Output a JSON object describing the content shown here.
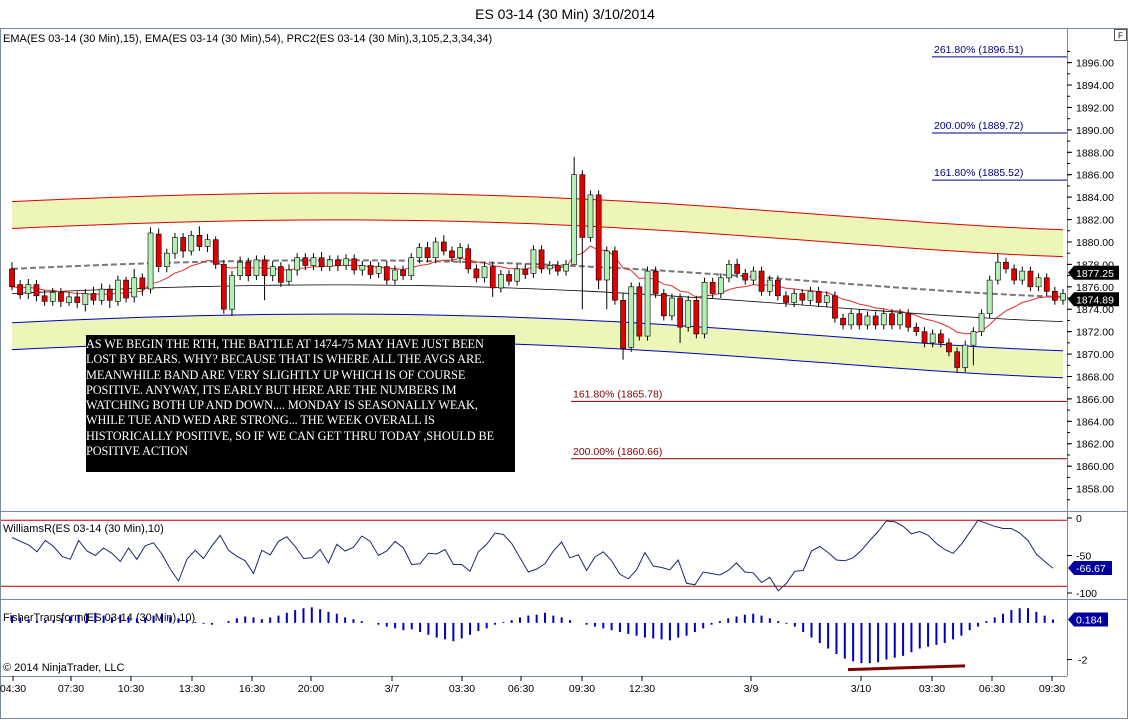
{
  "title": "ES 03-14 (30 Min)  3/10/2014",
  "indicator_label": "EMA(ES 03-14 (30 Min),15), EMA(ES 03-14 (30 Min),54), PRC2(ES 03-14 (30 Min),3,105,2,3,34,34)",
  "corner_label": "F",
  "williams_label": "WilliamsR(ES 03-14 (30 Min),10)",
  "fisher_label": "FisherTransform(ES 03-14 (30 Min),10)",
  "copyright": "© 2014 NinjaTrader, LLC",
  "annotation": "AS WE BEGIN THE RTH, THE BATTLE AT 1474-75 MAY HAVE JUST BEEN LOST BY BEARS. WHY? BECAUSE THAT IS WHERE ALL THE AVGS ARE. MEANWHILE BAND ARE VERY SLIGHTLY UP WHICH IS OF COURSE POSITIVE. ANYWAY, ITS EARLY BUT HERE ARE THE NUMBERS IM WATCHING BOTH UP AND DOWN.... MONDAY IS SEASONALLY WEAK, WHILE TUE AND WED ARE STRONG... THE WEEK OVERALL IS HISTORICALLY POSITIVE, SO IF WE CAN GET THRU TODAY ,SHOULD BE POSITIVE ACTION",
  "colors": {
    "up": "#b4f0b4",
    "down": "#e00000",
    "fib_blue": "#000080",
    "fib_red": "#800000",
    "band_fill": "#eef5b8",
    "band_red": "#e00000",
    "band_blue": "#0000c0",
    "marker_blue": "#0000c0"
  },
  "chart_data": [
    {
      "type": "candlestick",
      "title": "ES 03-14 (30 Min)  3/10/2014",
      "y_ticks": [
        "1858.00",
        "1860.00",
        "1862.00",
        "1864.00",
        "1866.00",
        "1868.00",
        "1870.00",
        "1872.00",
        "1874.00",
        "1876.00",
        "1878.00",
        "1880.00",
        "1882.00",
        "1884.00",
        "1886.00",
        "1888.00",
        "1890.00",
        "1892.00",
        "1894.00",
        "1896.00"
      ],
      "ylim": [
        1856,
        1899
      ],
      "x_ticks": [
        "04:30",
        "07:30",
        "10:30",
        "13:30",
        "16:30",
        "20:00",
        "3/7",
        "03:30",
        "06:30",
        "09:30",
        "12:30",
        "3/9",
        "3/10",
        "03:30",
        "06:30",
        "09:30"
      ],
      "price_markers": [
        "1877.25",
        "1874.89"
      ],
      "fib_levels": [
        {
          "label": "261.80% (1896.51)",
          "value": 1896.51,
          "color": "blue"
        },
        {
          "label": "200.00% (1889.72)",
          "value": 1889.72,
          "color": "blue"
        },
        {
          "label": "161.80% (1885.52)",
          "value": 1885.52,
          "color": "blue"
        },
        {
          "label": "161.80% (1865.78)",
          "value": 1865.78,
          "color": "red"
        },
        {
          "label": "200.00% (1860.66)",
          "value": 1860.66,
          "color": "red"
        }
      ],
      "candles": [
        [
          1877.6,
          1876.0,
          1878.2,
          1875.7
        ],
        [
          1876.2,
          1875.3,
          1876.6,
          1874.9
        ],
        [
          1875.4,
          1876.2,
          1876.7,
          1874.9
        ],
        [
          1876.2,
          1875.2,
          1876.6,
          1874.7
        ],
        [
          1875.2,
          1874.7,
          1875.7,
          1874.3
        ],
        [
          1874.7,
          1875.5,
          1875.9,
          1874.3
        ],
        [
          1875.5,
          1874.7,
          1875.9,
          1874.2
        ],
        [
          1874.6,
          1875.1,
          1875.5,
          1874.3
        ],
        [
          1875.1,
          1874.6,
          1875.6,
          1874.1
        ],
        [
          1874.4,
          1875.4,
          1875.8,
          1873.8
        ],
        [
          1875.4,
          1874.8,
          1876.0,
          1874.4
        ],
        [
          1874.8,
          1875.8,
          1876.3,
          1874.4
        ],
        [
          1875.8,
          1874.8,
          1876.2,
          1874.1
        ],
        [
          1874.7,
          1876.6,
          1877.0,
          1874.3
        ],
        [
          1876.6,
          1875.0,
          1876.9,
          1874.6
        ],
        [
          1875.1,
          1876.8,
          1877.6,
          1874.6
        ],
        [
          1876.8,
          1875.8,
          1877.2,
          1875.2
        ],
        [
          1875.8,
          1880.8,
          1881.3,
          1875.4
        ],
        [
          1880.7,
          1877.8,
          1881.2,
          1877.3
        ],
        [
          1877.8,
          1879.0,
          1879.4,
          1877.3
        ],
        [
          1879.0,
          1880.4,
          1880.8,
          1878.5
        ],
        [
          1880.4,
          1879.2,
          1880.8,
          1878.6
        ],
        [
          1879.2,
          1880.6,
          1881.0,
          1878.8
        ],
        [
          1880.6,
          1879.6,
          1881.4,
          1879.2
        ],
        [
          1879.6,
          1880.2,
          1880.7,
          1879.1
        ],
        [
          1880.2,
          1878.0,
          1880.5,
          1877.6
        ],
        [
          1878.0,
          1874.0,
          1878.4,
          1873.6
        ],
        [
          1874.0,
          1877.0,
          1877.4,
          1873.4
        ],
        [
          1877.0,
          1878.2,
          1878.7,
          1876.6
        ],
        [
          1878.2,
          1877.0,
          1878.6,
          1876.5
        ],
        [
          1877.0,
          1878.4,
          1878.8,
          1876.6
        ],
        [
          1878.4,
          1877.0,
          1878.8,
          1874.8
        ],
        [
          1877.0,
          1877.8,
          1878.3,
          1876.5
        ],
        [
          1877.8,
          1876.4,
          1878.2,
          1876.0
        ],
        [
          1876.5,
          1877.5,
          1878.0,
          1876.1
        ],
        [
          1877.5,
          1878.6,
          1879.0,
          1877.0
        ],
        [
          1878.6,
          1877.9,
          1879.0,
          1877.5
        ],
        [
          1877.9,
          1878.6,
          1879.0,
          1877.5
        ],
        [
          1878.6,
          1877.8,
          1879.1,
          1877.4
        ],
        [
          1877.8,
          1878.4,
          1878.8,
          1877.4
        ],
        [
          1878.4,
          1877.9,
          1878.8,
          1877.4
        ],
        [
          1877.9,
          1878.5,
          1878.9,
          1877.5
        ],
        [
          1878.5,
          1877.5,
          1878.9,
          1877.1
        ],
        [
          1877.5,
          1877.9,
          1878.3,
          1877.0
        ],
        [
          1877.9,
          1877.1,
          1878.3,
          1876.7
        ],
        [
          1877.2,
          1877.8,
          1878.2,
          1876.8
        ],
        [
          1877.8,
          1876.6,
          1878.3,
          1876.2
        ],
        [
          1876.6,
          1877.5,
          1877.9,
          1876.2
        ],
        [
          1877.5,
          1877.0,
          1877.9,
          1876.6
        ],
        [
          1877.0,
          1878.6,
          1879.0,
          1876.6
        ],
        [
          1878.6,
          1879.5,
          1879.9,
          1878.1
        ],
        [
          1879.5,
          1878.6,
          1880.0,
          1878.2
        ],
        [
          1878.6,
          1880.0,
          1880.4,
          1878.1
        ],
        [
          1880.0,
          1879.2,
          1880.6,
          1878.8
        ],
        [
          1879.2,
          1878.6,
          1879.6,
          1878.2
        ],
        [
          1878.6,
          1879.5,
          1879.9,
          1878.1
        ],
        [
          1879.4,
          1877.6,
          1879.8,
          1877.2
        ],
        [
          1877.6,
          1876.8,
          1878.0,
          1876.4
        ],
        [
          1876.8,
          1877.8,
          1878.2,
          1876.4
        ],
        [
          1877.8,
          1875.9,
          1878.2,
          1875.1
        ],
        [
          1875.9,
          1877.1,
          1877.5,
          1875.5
        ],
        [
          1877.1,
          1876.5,
          1877.5,
          1876.1
        ],
        [
          1876.5,
          1877.6,
          1878.0,
          1876.1
        ],
        [
          1877.6,
          1877.1,
          1878.0,
          1876.7
        ],
        [
          1877.2,
          1879.3,
          1879.7,
          1876.8
        ],
        [
          1879.3,
          1877.6,
          1879.7,
          1877.2
        ],
        [
          1877.6,
          1877.9,
          1878.3,
          1877.1
        ],
        [
          1877.9,
          1877.4,
          1878.3,
          1877.0
        ],
        [
          1877.4,
          1878.0,
          1878.4,
          1877.0
        ],
        [
          1878.0,
          1886.0,
          1887.6,
          1878.0
        ],
        [
          1886.0,
          1880.4,
          1886.4,
          1874.0
        ],
        [
          1880.4,
          1884.2,
          1884.6,
          1880.0
        ],
        [
          1884.2,
          1876.6,
          1884.6,
          1875.8
        ],
        [
          1876.6,
          1879.2,
          1879.6,
          1874.0
        ],
        [
          1879.2,
          1874.8,
          1879.6,
          1874.4
        ],
        [
          1874.8,
          1870.5,
          1875.4,
          1869.5
        ],
        [
          1870.6,
          1876.0,
          1876.4,
          1870.2
        ],
        [
          1876.0,
          1871.6,
          1876.4,
          1871.2
        ],
        [
          1871.6,
          1877.4,
          1877.8,
          1871.2
        ],
        [
          1877.4,
          1875.4,
          1877.8,
          1875.0
        ],
        [
          1875.4,
          1873.4,
          1875.8,
          1873.0
        ],
        [
          1873.4,
          1875.0,
          1875.4,
          1873.0
        ],
        [
          1875.0,
          1872.4,
          1875.4,
          1871.0
        ],
        [
          1872.4,
          1874.8,
          1875.2,
          1872.0
        ],
        [
          1874.8,
          1871.8,
          1875.2,
          1871.4
        ],
        [
          1871.8,
          1876.4,
          1876.8,
          1871.4
        ],
        [
          1876.4,
          1875.4,
          1876.8,
          1875.0
        ],
        [
          1875.4,
          1876.8,
          1877.2,
          1875.0
        ],
        [
          1876.8,
          1878.0,
          1878.4,
          1876.4
        ],
        [
          1878.0,
          1877.2,
          1878.5,
          1876.8
        ],
        [
          1877.2,
          1876.6,
          1877.6,
          1876.2
        ],
        [
          1876.6,
          1877.4,
          1877.8,
          1876.2
        ],
        [
          1877.4,
          1875.6,
          1877.8,
          1875.2
        ],
        [
          1875.6,
          1876.6,
          1877.0,
          1875.2
        ],
        [
          1876.6,
          1875.2,
          1877.0,
          1874.8
        ],
        [
          1875.2,
          1874.6,
          1875.6,
          1874.2
        ],
        [
          1874.6,
          1875.4,
          1875.8,
          1874.2
        ],
        [
          1875.4,
          1874.8,
          1875.8,
          1874.4
        ],
        [
          1874.8,
          1875.6,
          1876.0,
          1874.4
        ],
        [
          1875.6,
          1874.6,
          1876.0,
          1874.2
        ],
        [
          1874.6,
          1875.2,
          1875.6,
          1874.2
        ],
        [
          1875.2,
          1873.2,
          1875.6,
          1872.8
        ],
        [
          1873.2,
          1872.6,
          1873.6,
          1872.2
        ],
        [
          1872.6,
          1873.6,
          1874.0,
          1872.2
        ],
        [
          1873.6,
          1872.6,
          1874.0,
          1872.2
        ],
        [
          1872.6,
          1873.4,
          1873.8,
          1872.2
        ],
        [
          1873.4,
          1872.6,
          1873.8,
          1872.2
        ],
        [
          1872.6,
          1873.6,
          1874.0,
          1872.2
        ],
        [
          1873.6,
          1872.6,
          1874.0,
          1872.2
        ],
        [
          1872.6,
          1873.6,
          1874.0,
          1872.2
        ],
        [
          1873.6,
          1872.4,
          1874.0,
          1872.0
        ],
        [
          1872.4,
          1872.0,
          1872.8,
          1871.6
        ],
        [
          1872.0,
          1871.0,
          1872.4,
          1870.6
        ],
        [
          1871.0,
          1871.8,
          1872.2,
          1870.6
        ],
        [
          1871.8,
          1871.0,
          1872.2,
          1870.6
        ],
        [
          1871.0,
          1870.2,
          1871.4,
          1869.8
        ],
        [
          1870.2,
          1868.8,
          1870.6,
          1868.4
        ],
        [
          1868.8,
          1870.8,
          1871.2,
          1868.4
        ],
        [
          1870.8,
          1872.0,
          1872.4,
          1869.0
        ],
        [
          1872.0,
          1873.6,
          1874.0,
          1871.6
        ],
        [
          1873.6,
          1876.6,
          1877.0,
          1873.2
        ],
        [
          1876.6,
          1878.2,
          1879.0,
          1876.2
        ],
        [
          1878.2,
          1877.6,
          1878.6,
          1877.2
        ],
        [
          1877.6,
          1876.6,
          1878.0,
          1876.2
        ],
        [
          1876.6,
          1877.4,
          1877.8,
          1876.2
        ],
        [
          1877.4,
          1876.0,
          1877.8,
          1875.6
        ],
        [
          1876.0,
          1876.8,
          1877.2,
          1875.6
        ],
        [
          1876.8,
          1875.6,
          1877.2,
          1875.2
        ],
        [
          1875.6,
          1874.8,
          1876.0,
          1874.4
        ],
        [
          1874.8,
          1875.4,
          1875.8,
          1874.4
        ]
      ]
    },
    {
      "type": "line",
      "title": "WilliamsR(ES 03-14 (30 Min),10)",
      "y_ticks": [
        "0",
        "-50",
        "-100"
      ],
      "ylim": [
        -108,
        8
      ],
      "levels": [
        -3,
        -91
      ],
      "price_marker": "-66.67",
      "values": [
        -26,
        -31,
        -36,
        -45,
        -30,
        -38,
        -51,
        -55,
        -30,
        -44,
        -50,
        -40,
        -47,
        -58,
        -40,
        -55,
        -37,
        -33,
        -48,
        -68,
        -84,
        -55,
        -43,
        -54,
        -37,
        -23,
        -43,
        -51,
        -57,
        -74,
        -43,
        -49,
        -31,
        -25,
        -38,
        -54,
        -53,
        -42,
        -60,
        -35,
        -44,
        -39,
        -24,
        -31,
        -50,
        -44,
        -31,
        -40,
        -62,
        -61,
        -47,
        -48,
        -42,
        -62,
        -62,
        -71,
        -45,
        -35,
        -20,
        -22,
        -34,
        -53,
        -72,
        -68,
        -61,
        -44,
        -32,
        -53,
        -49,
        -70,
        -52,
        -45,
        -57,
        -75,
        -81,
        -69,
        -46,
        -64,
        -66,
        -69,
        -56,
        -87,
        -89,
        -72,
        -74,
        -76,
        -70,
        -60,
        -72,
        -73,
        -86,
        -79,
        -97,
        -87,
        -71,
        -70,
        -44,
        -38,
        -46,
        -56,
        -57,
        -53,
        -43,
        -30,
        -18,
        -4,
        -5,
        -11,
        -21,
        -18,
        -23,
        -34,
        -42,
        -47,
        -35,
        -19,
        -3,
        -7,
        -11,
        -14,
        -14,
        -20,
        -30,
        -48,
        -58,
        -67
      ]
    },
    {
      "type": "bar",
      "title": "FisherTransform(ES 03-14 (30 Min),10)",
      "y_ticks": [
        "-2"
      ],
      "ylim": [
        -2.9,
        1.25
      ],
      "price_marker": "0.184",
      "values": [
        0.4,
        0.3,
        0.2,
        0.1,
        0.1,
        0.15,
        0.25,
        0.35,
        0.45,
        0.5,
        0.55,
        0.4,
        0.3,
        0.45,
        0.35,
        0.25,
        0.3,
        0.4,
        0.5,
        0.35,
        0.25,
        0.15,
        0.05,
        -0.05,
        -0.1,
        0.0,
        0.1,
        0.25,
        0.35,
        0.3,
        0.2,
        0.3,
        0.4,
        0.55,
        0.7,
        0.8,
        0.85,
        0.75,
        0.6,
        0.5,
        0.3,
        0.2,
        0.1,
        0.0,
        -0.1,
        -0.2,
        -0.3,
        -0.4,
        -0.35,
        -0.5,
        -0.65,
        -0.8,
        -0.9,
        -1.0,
        -0.85,
        -0.65,
        -0.45,
        -0.3,
        -0.1,
        0.05,
        0.15,
        0.3,
        0.4,
        0.45,
        0.55,
        0.4,
        0.3,
        0.15,
        0.0,
        -0.1,
        -0.2,
        -0.3,
        -0.4,
        -0.5,
        -0.6,
        -0.7,
        -0.8,
        -0.85,
        -0.9,
        -0.95,
        -0.8,
        -0.7,
        -0.5,
        -0.3,
        -0.1,
        0.1,
        0.25,
        0.35,
        0.45,
        0.5,
        0.4,
        0.25,
        0.1,
        -0.05,
        -0.2,
        -0.5,
        -0.8,
        -1.1,
        -1.4,
        -1.7,
        -1.95,
        -2.1,
        -2.2,
        -2.2,
        -2.15,
        -2.0,
        -1.9,
        -1.8,
        -1.6,
        -1.4,
        -1.3,
        -1.2,
        -1.1,
        -0.9,
        -0.7,
        -0.4,
        -0.2,
        0.1,
        0.3,
        0.5,
        0.7,
        0.8,
        0.8,
        0.6,
        0.4,
        0.184
      ]
    }
  ]
}
